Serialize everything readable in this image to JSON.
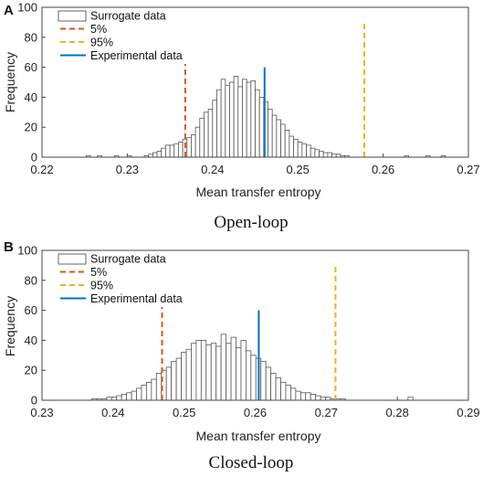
{
  "chart_data": [
    {
      "type": "bar",
      "panel_label": "A",
      "caption": "Open-loop",
      "xlabel": "Mean transfer entropy",
      "ylabel": "Frequency",
      "xlim": [
        0.22,
        0.27
      ],
      "ylim": [
        0,
        100
      ],
      "xticks": [
        "0.22",
        "0.23",
        "0.24",
        "0.25",
        "0.26",
        "0.27"
      ],
      "yticks": [
        "0",
        "20",
        "40",
        "60",
        "80",
        "100"
      ],
      "bin_start": 0.232,
      "bin_width": 0.0005,
      "counts": [
        1,
        2,
        3,
        4,
        6,
        8,
        8,
        9,
        10,
        12,
        13,
        15,
        20,
        26,
        30,
        32,
        38,
        45,
        52,
        48,
        50,
        54,
        47,
        52,
        50,
        51,
        45,
        40,
        37,
        32,
        28,
        25,
        22,
        18,
        14,
        12,
        10,
        9,
        8,
        6,
        5,
        4,
        3,
        3,
        2,
        2,
        1,
        1
      ],
      "outliers": [
        {
          "x": 0.2252,
          "count": 1
        },
        {
          "x": 0.2265,
          "count": 1
        },
        {
          "x": 0.2285,
          "count": 1
        },
        {
          "x": 0.23,
          "count": 1
        },
        {
          "x": 0.2625,
          "count": 1
        },
        {
          "x": 0.265,
          "count": 1
        },
        {
          "x": 0.2668,
          "count": 1
        }
      ],
      "legend": [
        "Surrogate data",
        "5%",
        "95%",
        "Experimental data"
      ],
      "legend_position": "top-left",
      "lines": [
        {
          "name": "5%",
          "x": 0.2368,
          "height": 90,
          "color": "#d95319",
          "style": "dashed"
        },
        {
          "name": "95%",
          "x": 0.2578,
          "height": 90,
          "color": "#edb120",
          "style": "dashed"
        },
        {
          "name": "Experimental data",
          "x": 0.2461,
          "height": 60,
          "color": "#0072bd",
          "style": "solid"
        }
      ],
      "bar_color": "#ffffff",
      "bar_edge": "#555555"
    },
    {
      "type": "bar",
      "panel_label": "B",
      "caption": "Closed-loop",
      "xlabel": "Mean transfer entropy",
      "ylabel": "Frequency",
      "xlim": [
        0.23,
        0.29
      ],
      "ylim": [
        0,
        100
      ],
      "xticks": [
        "0.23",
        "0.24",
        "0.25",
        "0.26",
        "0.27",
        "0.28",
        "0.29"
      ],
      "yticks": [
        "0",
        "20",
        "40",
        "60",
        "80",
        "100"
      ],
      "bin_start": 0.237,
      "bin_width": 0.0007,
      "counts": [
        1,
        1,
        1,
        2,
        2,
        3,
        4,
        5,
        6,
        8,
        10,
        12,
        14,
        18,
        20,
        22,
        26,
        28,
        32,
        34,
        38,
        40,
        40,
        37,
        38,
        36,
        44,
        38,
        42,
        35,
        40,
        33,
        30,
        28,
        26,
        22,
        18,
        15,
        12,
        10,
        8,
        6,
        5,
        5,
        4,
        3,
        2,
        2,
        1,
        1,
        1
      ],
      "outliers": [
        {
          "x": 0.2815,
          "count": 2
        }
      ],
      "legend": [
        "Surrogate data",
        "5%",
        "95%",
        "Experimental data"
      ],
      "legend_position": "top-left",
      "lines": [
        {
          "name": "5%",
          "x": 0.2469,
          "height": 90,
          "color": "#d95319",
          "style": "dashed"
        },
        {
          "name": "95%",
          "x": 0.2713,
          "height": 90,
          "color": "#edb120",
          "style": "dashed"
        },
        {
          "name": "Experimental data",
          "x": 0.2605,
          "height": 60,
          "color": "#0072bd",
          "style": "solid"
        }
      ],
      "bar_color": "#ffffff",
      "bar_edge": "#555555"
    }
  ]
}
